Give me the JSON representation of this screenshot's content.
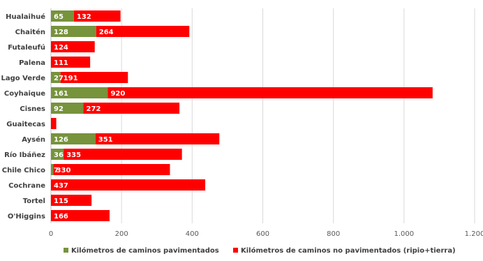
{
  "chart_data": {
    "type": "bar",
    "orientation": "horizontal",
    "stacked": true,
    "categories": [
      "Hualaihué",
      "Chaitén",
      "Futaleufú",
      "Palena",
      "Lago Verde",
      "Coyhaique",
      "Cisnes",
      "Guaitecas",
      "Aysén",
      "Río Ibáñez",
      "Chile Chico",
      "Cochrane",
      "Tortel",
      "O'Higgins"
    ],
    "series": [
      {
        "name": "Kilómetros de caminos  pavimentados",
        "color": "#77933c",
        "values": [
          65,
          128,
          0,
          0,
          27,
          161,
          92,
          0,
          126,
          36,
          7,
          0,
          0,
          0
        ],
        "labels": [
          "65",
          "128",
          "",
          "",
          "27",
          "161",
          "92",
          "",
          "126",
          "36",
          "7",
          "",
          "",
          ""
        ]
      },
      {
        "name": "Kilómetros de caminos no pavimentados (ripio+tierra)",
        "color": "#ff0000",
        "values": [
          132,
          264,
          124,
          111,
          191,
          920,
          272,
          15,
          351,
          335,
          330,
          437,
          115,
          166
        ],
        "labels": [
          "132",
          "264",
          "124",
          "111",
          "191",
          "920",
          "272",
          "",
          "351",
          "335",
          "330",
          "437",
          "115",
          "166"
        ]
      }
    ],
    "xlim": [
      0,
      1200
    ],
    "xticks": [
      0,
      200,
      400,
      600,
      800,
      1000,
      1200
    ],
    "xtick_labels": [
      "0",
      "200",
      "400",
      "600",
      "800",
      "1.000",
      "1.200"
    ],
    "grid": true,
    "legend_position": "bottom",
    "title": "",
    "xlabel": "",
    "ylabel": ""
  }
}
